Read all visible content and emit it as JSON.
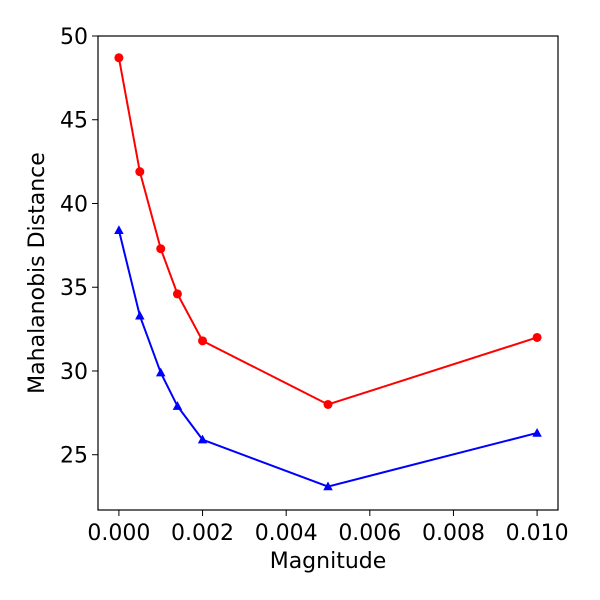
{
  "chart_data": {
    "type": "line",
    "title": "",
    "xlabel": "Magnitude",
    "ylabel": "Mahalanobis Distance",
    "xlim": [
      -0.0005,
      0.0105
    ],
    "ylim": [
      21.7,
      50.0
    ],
    "xticks": [
      0.0,
      0.002,
      0.004,
      0.006,
      0.008,
      0.01
    ],
    "xtick_labels": [
      "0.000",
      "0.002",
      "0.004",
      "0.006",
      "0.008",
      "0.010"
    ],
    "yticks": [
      25,
      30,
      35,
      40,
      45,
      50
    ],
    "ytick_labels": [
      "25",
      "30",
      "35",
      "40",
      "45",
      "50"
    ],
    "grid": false,
    "legend": "none",
    "series": [
      {
        "color": "#ff0000",
        "marker": "circle",
        "x": [
          0.0,
          0.0005,
          0.001,
          0.0014,
          0.002,
          0.005,
          0.01
        ],
        "y": [
          48.7,
          41.9,
          37.3,
          34.6,
          31.8,
          28.0,
          32.0
        ]
      },
      {
        "color": "#0000ff",
        "marker": "triangle",
        "x": [
          0.0,
          0.0005,
          0.001,
          0.0014,
          0.002,
          0.005,
          0.01
        ],
        "y": [
          38.4,
          33.3,
          29.9,
          27.9,
          25.9,
          23.1,
          26.3
        ]
      }
    ]
  }
}
